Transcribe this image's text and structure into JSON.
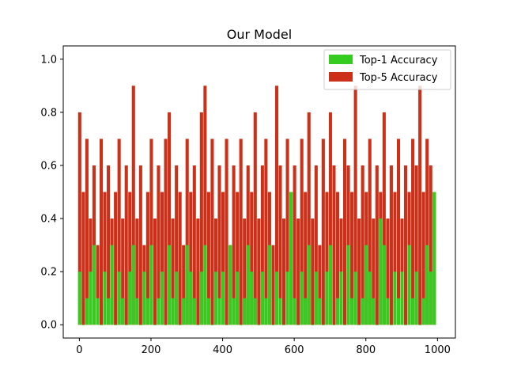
{
  "chart_data": {
    "type": "bar",
    "title": "Our Model",
    "xlabel": "",
    "ylabel": "",
    "xlim": [
      -45,
      1050
    ],
    "ylim": [
      -0.05,
      1.05
    ],
    "xticks": [
      0,
      200,
      400,
      600,
      800,
      1000
    ],
    "xtick_labels": [
      "0",
      "200",
      "400",
      "600",
      "800",
      "1000"
    ],
    "yticks": [
      0.0,
      0.2,
      0.4,
      0.6,
      0.8,
      1.0
    ],
    "ytick_labels": [
      "0.0",
      "0.2",
      "0.4",
      "0.6",
      "0.8",
      "1.0"
    ],
    "grid": false,
    "legend_position": "top-right",
    "x_start": 1,
    "x_step": 10,
    "series": [
      {
        "name": "Top-1 Accuracy",
        "color": "#33cc1f",
        "values": [
          0.2,
          0.0,
          0.1,
          0.2,
          0.3,
          0.1,
          0.0,
          0.2,
          0.1,
          0.3,
          0.0,
          0.2,
          0.1,
          0.0,
          0.2,
          0.3,
          0.1,
          0.0,
          0.2,
          0.1,
          0.3,
          0.0,
          0.1,
          0.2,
          0.0,
          0.3,
          0.1,
          0.2,
          0.0,
          0.1,
          0.3,
          0.2,
          0.1,
          0.0,
          0.2,
          0.3,
          0.1,
          0.0,
          0.2,
          0.1,
          0.2,
          0.0,
          0.3,
          0.1,
          0.2,
          0.0,
          0.1,
          0.3,
          0.2,
          0.1,
          0.0,
          0.2,
          0.1,
          0.3,
          0.0,
          0.2,
          0.1,
          0.0,
          0.2,
          0.5,
          0.1,
          0.0,
          0.2,
          0.1,
          0.3,
          0.0,
          0.2,
          0.1,
          0.0,
          0.2,
          0.3,
          0.0,
          0.1,
          0.2,
          0.0,
          0.3,
          0.1,
          0.2,
          0.0,
          0.1,
          0.3,
          0.2,
          0.1,
          0.0,
          0.4,
          0.3,
          0.1,
          0.0,
          0.2,
          0.1,
          0.2,
          0.0,
          0.3,
          0.1,
          0.2,
          0.0,
          0.1,
          0.3,
          0.2,
          0.5
        ]
      },
      {
        "name": "Top-5 Accuracy",
        "color": "#cc3018",
        "values": [
          0.8,
          0.5,
          0.7,
          0.4,
          0.6,
          0.3,
          0.7,
          0.5,
          0.6,
          0.4,
          0.5,
          0.7,
          0.4,
          0.6,
          0.5,
          0.9,
          0.4,
          0.6,
          0.3,
          0.5,
          0.7,
          0.4,
          0.6,
          0.5,
          0.7,
          0.8,
          0.4,
          0.6,
          0.5,
          0.3,
          0.7,
          0.5,
          0.6,
          0.4,
          0.8,
          0.9,
          0.5,
          0.7,
          0.4,
          0.6,
          0.5,
          0.7,
          0.3,
          0.6,
          0.5,
          0.7,
          0.4,
          0.6,
          0.5,
          0.8,
          0.4,
          0.6,
          0.7,
          0.5,
          0.3,
          0.9,
          0.6,
          0.4,
          0.7,
          0.5,
          0.6,
          0.4,
          0.7,
          0.5,
          0.8,
          0.4,
          0.6,
          0.3,
          0.7,
          0.5,
          0.8,
          0.6,
          0.5,
          0.4,
          0.7,
          0.6,
          0.5,
          0.9,
          0.4,
          0.6,
          0.5,
          0.7,
          0.4,
          0.6,
          0.5,
          0.8,
          0.4,
          0.6,
          0.5,
          0.7,
          0.4,
          0.6,
          0.5,
          0.7,
          0.6,
          0.9,
          0.5,
          0.7,
          0.6,
          0.5
        ]
      }
    ]
  }
}
